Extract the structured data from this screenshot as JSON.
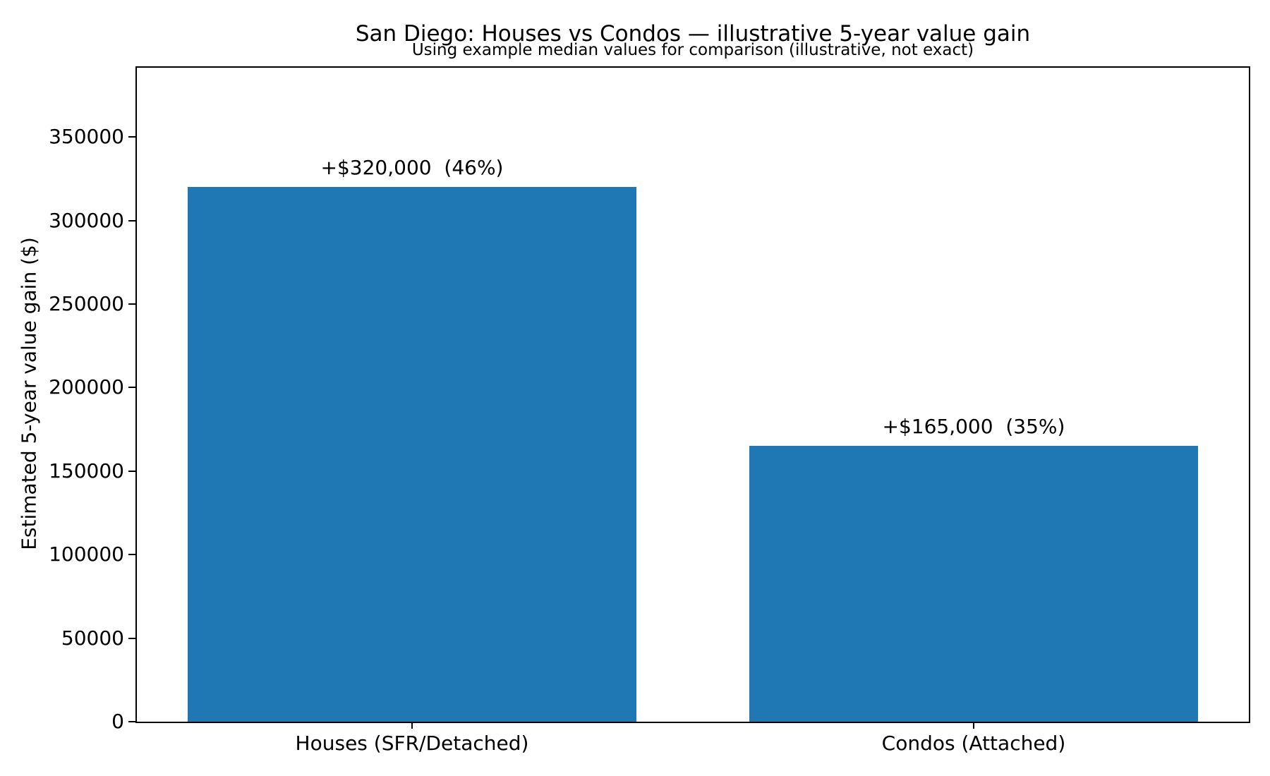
{
  "chart_data": {
    "type": "bar",
    "title": "San Diego: Houses vs Condos — illustrative 5-year value gain",
    "subtitle": "Using example median values for comparison (illustrative, not exact)",
    "categories": [
      "Houses (SFR/Detached)",
      "Condos (Attached)"
    ],
    "values": [
      320000,
      165000
    ],
    "bar_labels": [
      "+$320,000  (46%)",
      "+$165,000  (35%)"
    ],
    "xlabel": "",
    "ylabel": "Estimated 5-year value gain ($)",
    "ylim": [
      0,
      391500
    ],
    "yticks": [
      0,
      50000,
      100000,
      150000,
      200000,
      250000,
      300000,
      350000
    ],
    "ytick_labels": [
      "0",
      "50000",
      "100000",
      "150000",
      "200000",
      "250000",
      "300000",
      "350000"
    ],
    "bar_color": "#1f77b4",
    "text_color": "#000000",
    "background_color": "#ffffff",
    "grid": false,
    "legend": null,
    "bar_width_fraction": 0.8,
    "annotation_offset": 8000
  }
}
